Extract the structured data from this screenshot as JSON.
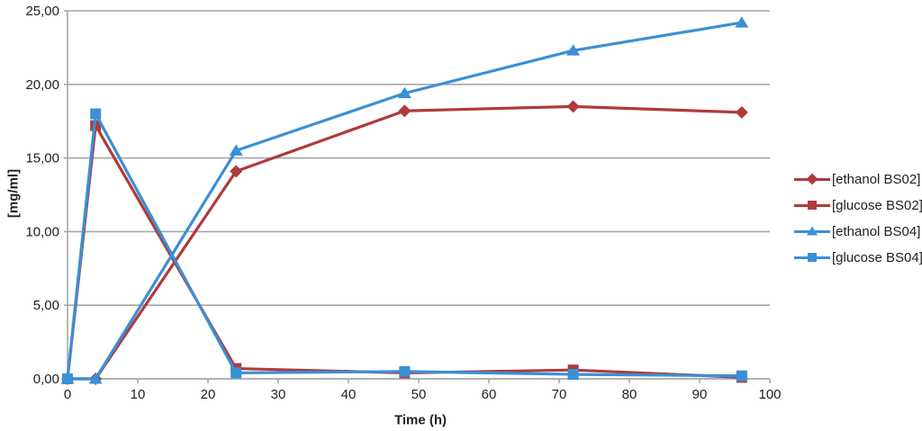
{
  "chart_data": {
    "type": "line",
    "title": "",
    "xlabel": "Time (h)",
    "ylabel": "[mg/ml]",
    "x": [
      0,
      4,
      24,
      48,
      72,
      96
    ],
    "series": [
      {
        "name": "[ethanol BS02]",
        "color": "#B03A3C",
        "marker": "diamond",
        "values": [
          0.0,
          0.0,
          14.1,
          18.2,
          18.5,
          18.1
        ]
      },
      {
        "name": "[glucose BS02]",
        "color": "#B03A3C",
        "marker": "square",
        "values": [
          0.0,
          17.2,
          0.7,
          0.4,
          0.6,
          0.1
        ]
      },
      {
        "name": "[ethanol BS04]",
        "color": "#3A90D5",
        "marker": "triangle",
        "values": [
          0.0,
          0.0,
          15.5,
          19.4,
          22.3,
          24.2
        ]
      },
      {
        "name": "[glucose BS04]",
        "color": "#3A90D5",
        "marker": "square",
        "values": [
          0.0,
          18.0,
          0.4,
          0.5,
          0.3,
          0.2
        ]
      }
    ],
    "xlim": [
      0,
      100
    ],
    "ylim": [
      0,
      25
    ],
    "xticks": [
      0,
      10,
      20,
      30,
      40,
      50,
      60,
      70,
      80,
      90,
      100
    ],
    "yticks": [
      0,
      5,
      10,
      15,
      20,
      25
    ],
    "ytick_labels": [
      "0,00",
      "5,00",
      "10,00",
      "15,00",
      "20,00",
      "25,00"
    ],
    "grid": "horizontal-only",
    "legend_position": "right"
  },
  "style": {
    "grid_color": "#A6A6A6",
    "axis_color": "#A6A6A6",
    "text_color": "#1F1F1F",
    "background": "#FFFFFF"
  }
}
